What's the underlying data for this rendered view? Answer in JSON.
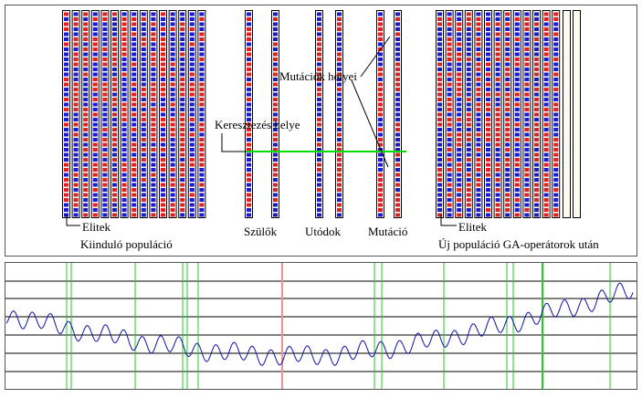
{
  "left": {
    "elite_label": "Elitek",
    "caption": "Kiinduló populáció"
  },
  "middle": {
    "parents": "Szülők",
    "offspring": "Utódok",
    "mutation": "Mutáció",
    "mutation_sites": "Mutációk helyei",
    "crossover_site": "Keresztezés helye"
  },
  "right": {
    "elite_label": "Elitek",
    "caption": "Új populáció GA-operátorok után"
  }
}
